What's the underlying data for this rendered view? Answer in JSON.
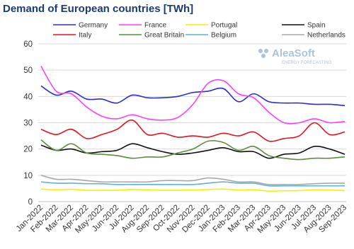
{
  "chart_data": {
    "type": "line",
    "title": "Demand of European countries [TWh]",
    "watermark": {
      "brand": "AleaSoft",
      "tagline": "ENERGY FORECASTING"
    },
    "categories": [
      "Jan-2022",
      "Feb-2022",
      "Mar-2022",
      "Apr-2022",
      "May-2022",
      "Jun-2022",
      "Jul-2022",
      "Aug-2022",
      "Sep-2022",
      "Oct-2022",
      "Nov-2022",
      "Dec-2022",
      "Jan-2023",
      "Feb-2023",
      "Mar-2023",
      "Apr-2023",
      "May-2023",
      "Jun-2023",
      "Jul-2023",
      "Aug-2023",
      "Sep-2023"
    ],
    "ylim": [
      0,
      60
    ],
    "yticks": [
      0,
      10,
      20,
      30,
      40,
      50,
      60
    ],
    "grid": true,
    "series": [
      {
        "name": "Germany",
        "color": "#2b2bd6",
        "values": [
          44,
          40.5,
          42,
          39,
          39,
          37.5,
          40.5,
          39.5,
          39.5,
          40,
          41.5,
          42,
          43,
          38,
          41,
          38,
          37.5,
          37.5,
          37,
          37,
          36.5
        ]
      },
      {
        "name": "France",
        "color": "#ff3dff",
        "values": [
          51.5,
          42,
          41,
          36,
          32.5,
          31.5,
          33,
          31.5,
          31,
          32,
          37,
          45,
          46,
          41,
          39.5,
          34,
          30,
          30,
          31.5,
          30,
          30.5
        ]
      },
      {
        "name": "Portugal",
        "color": "#f2f200",
        "values": [
          4.8,
          4.5,
          4.7,
          4.3,
          4.3,
          4.3,
          4.6,
          4.5,
          4.3,
          4.3,
          4.4,
          4.6,
          4.8,
          4.4,
          4.5,
          4,
          4.1,
          4.2,
          4.5,
          4.4,
          4.2
        ]
      },
      {
        "name": "Spain",
        "color": "#111111",
        "values": [
          21.5,
          19.5,
          20,
          18.5,
          19,
          19.5,
          22,
          20.5,
          19,
          18,
          18.5,
          19.5,
          20.5,
          19,
          19,
          16.5,
          18,
          18.5,
          21,
          20,
          18
        ]
      },
      {
        "name": "Italy",
        "color": "#e8101e",
        "values": [
          27.5,
          25.5,
          27.5,
          24,
          25.5,
          27.5,
          31,
          25.5,
          26,
          24.5,
          25,
          24.5,
          26,
          25,
          26.5,
          23,
          24,
          25,
          30,
          25.5,
          26.5
        ]
      },
      {
        "name": "Great Britain",
        "color": "#5e8c3c",
        "values": [
          23.5,
          19.5,
          22,
          18.5,
          18,
          17.5,
          16.5,
          17,
          17,
          18.5,
          20,
          23,
          22.5,
          19.5,
          21,
          17.5,
          16.5,
          16,
          16.5,
          16.5,
          17
        ]
      },
      {
        "name": "Belgium",
        "color": "#5fb3cc",
        "values": [
          7.5,
          7,
          7,
          6.8,
          6.8,
          6.5,
          6.5,
          6.5,
          6.5,
          6.5,
          6.5,
          7,
          7.5,
          7,
          7,
          6,
          6,
          6,
          6,
          6,
          6
        ]
      },
      {
        "name": "Netherlands",
        "color": "#a8a8a8",
        "values": [
          10,
          8.5,
          8.5,
          8,
          7.5,
          7.5,
          7.5,
          7.5,
          8,
          8,
          8,
          9,
          8.5,
          7.5,
          7.5,
          6.5,
          6.5,
          6.5,
          6.8,
          7,
          7
        ]
      }
    ]
  }
}
